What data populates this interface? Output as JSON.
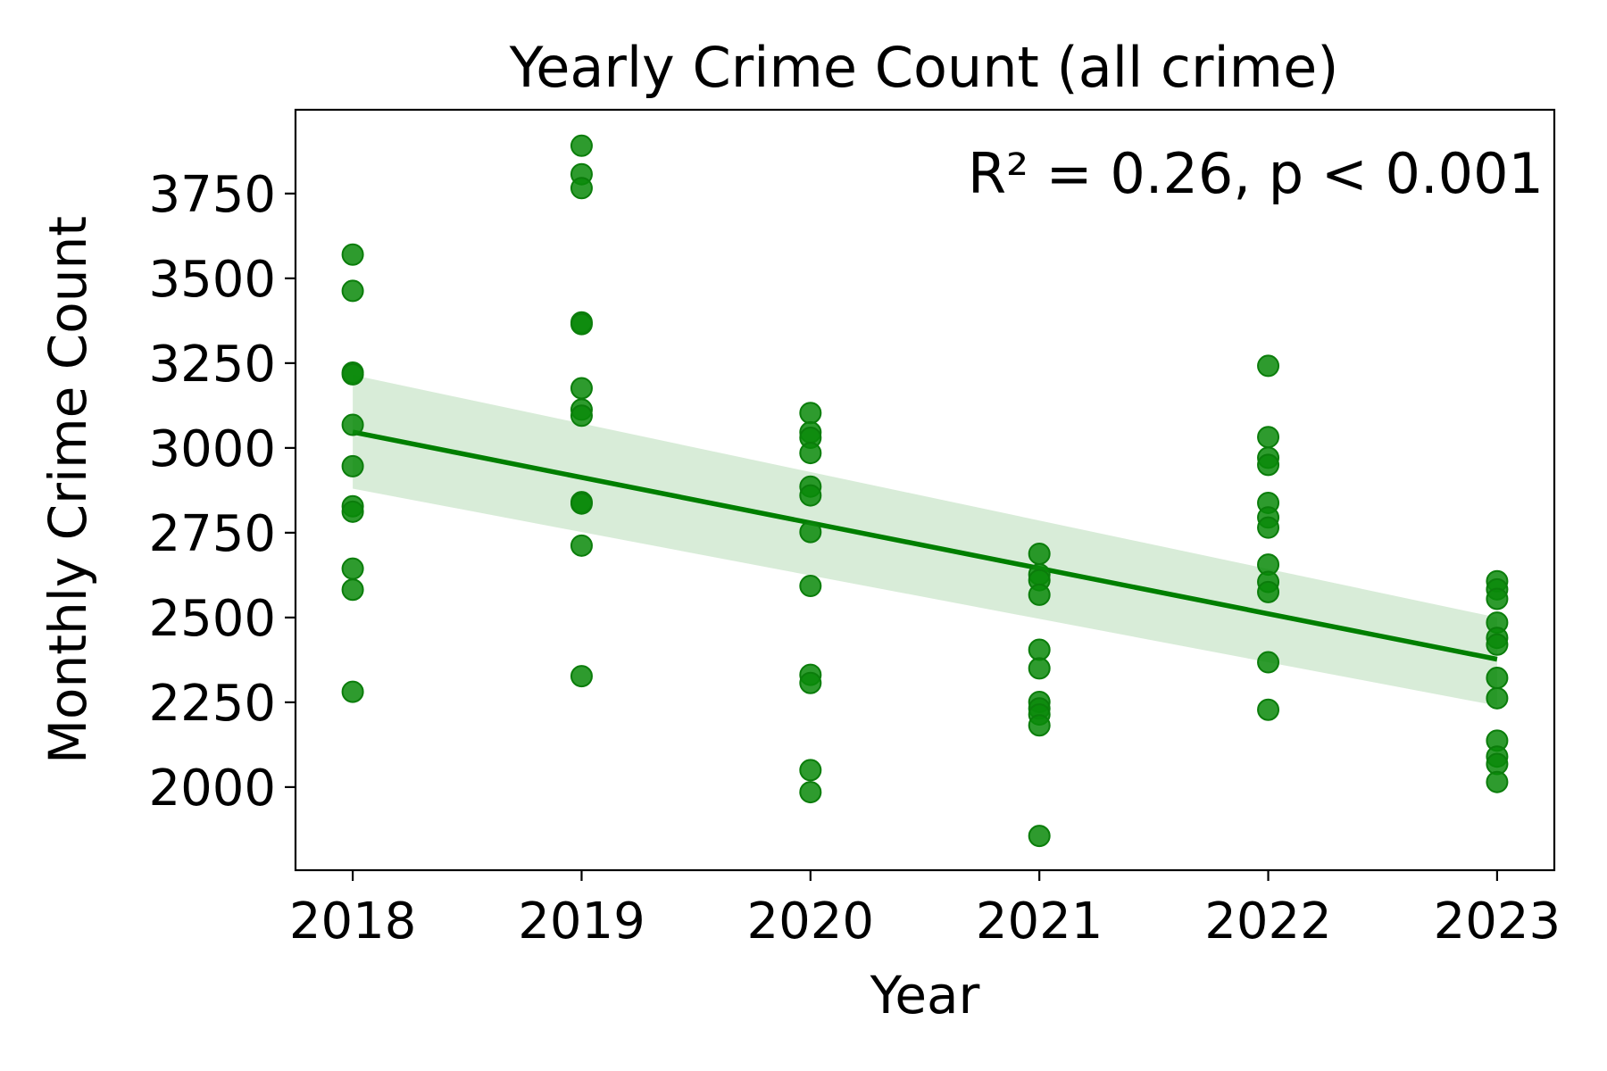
{
  "chart_data": {
    "type": "scatter",
    "title": "Yearly Crime Count (all crime)",
    "xlabel": "Year",
    "ylabel": "Monthly Crime Count",
    "annotation": "R² = 0.26, p < 0.001",
    "xlim": [
      2017.75,
      2023.25
    ],
    "ylim": [
      1755,
      3997
    ],
    "x_ticks": [
      2018,
      2019,
      2020,
      2021,
      2022,
      2023
    ],
    "x_tick_labels": [
      "2018",
      "2019",
      "2020",
      "2021",
      "2022",
      "2023"
    ],
    "y_ticks": [
      2000,
      2250,
      2500,
      2750,
      3000,
      3250,
      3500,
      3750
    ],
    "y_tick_labels": [
      "2000",
      "2250",
      "2500",
      "2750",
      "3000",
      "3250",
      "3500",
      "3750"
    ],
    "grid": false,
    "colors": {
      "points": "#098a09",
      "point_edge": "#0b7d0b",
      "line": "#007f00",
      "band": "#d8ecd8"
    },
    "series": [
      {
        "points": [
          {
            "x": 2018,
            "y": 3570
          },
          {
            "x": 2018,
            "y": 3463
          },
          {
            "x": 2018,
            "y": 3222
          },
          {
            "x": 2018,
            "y": 3217
          },
          {
            "x": 2018,
            "y": 3068
          },
          {
            "x": 2018,
            "y": 2946
          },
          {
            "x": 2018,
            "y": 2828
          },
          {
            "x": 2018,
            "y": 2812
          },
          {
            "x": 2018,
            "y": 2644
          },
          {
            "x": 2018,
            "y": 2582
          },
          {
            "x": 2018,
            "y": 2281
          },
          {
            "x": 2019,
            "y": 3891
          },
          {
            "x": 2019,
            "y": 3807
          },
          {
            "x": 2019,
            "y": 3766
          },
          {
            "x": 2019,
            "y": 3370
          },
          {
            "x": 2019,
            "y": 3365
          },
          {
            "x": 2019,
            "y": 3176
          },
          {
            "x": 2019,
            "y": 3113
          },
          {
            "x": 2019,
            "y": 3095
          },
          {
            "x": 2019,
            "y": 2840
          },
          {
            "x": 2019,
            "y": 2836
          },
          {
            "x": 2019,
            "y": 2712
          },
          {
            "x": 2019,
            "y": 2327
          },
          {
            "x": 2020,
            "y": 3103
          },
          {
            "x": 2020,
            "y": 3046
          },
          {
            "x": 2020,
            "y": 3030
          },
          {
            "x": 2020,
            "y": 2985
          },
          {
            "x": 2020,
            "y": 2886
          },
          {
            "x": 2020,
            "y": 2860
          },
          {
            "x": 2020,
            "y": 2752
          },
          {
            "x": 2020,
            "y": 2593
          },
          {
            "x": 2020,
            "y": 2331
          },
          {
            "x": 2020,
            "y": 2307
          },
          {
            "x": 2020,
            "y": 2050
          },
          {
            "x": 2020,
            "y": 1985
          },
          {
            "x": 2021,
            "y": 2688
          },
          {
            "x": 2021,
            "y": 2627
          },
          {
            "x": 2021,
            "y": 2610
          },
          {
            "x": 2021,
            "y": 2567
          },
          {
            "x": 2021,
            "y": 2405
          },
          {
            "x": 2021,
            "y": 2350
          },
          {
            "x": 2021,
            "y": 2251
          },
          {
            "x": 2021,
            "y": 2232
          },
          {
            "x": 2021,
            "y": 2214
          },
          {
            "x": 2021,
            "y": 2182
          },
          {
            "x": 2021,
            "y": 1856
          },
          {
            "x": 2022,
            "y": 3242
          },
          {
            "x": 2022,
            "y": 3032
          },
          {
            "x": 2022,
            "y": 2971
          },
          {
            "x": 2022,
            "y": 2950
          },
          {
            "x": 2022,
            "y": 2838
          },
          {
            "x": 2022,
            "y": 2795
          },
          {
            "x": 2022,
            "y": 2765
          },
          {
            "x": 2022,
            "y": 2656
          },
          {
            "x": 2022,
            "y": 2605
          },
          {
            "x": 2022,
            "y": 2575
          },
          {
            "x": 2022,
            "y": 2368
          },
          {
            "x": 2022,
            "y": 2228
          },
          {
            "x": 2023,
            "y": 2607
          },
          {
            "x": 2023,
            "y": 2583
          },
          {
            "x": 2023,
            "y": 2555
          },
          {
            "x": 2023,
            "y": 2485
          },
          {
            "x": 2023,
            "y": 2440
          },
          {
            "x": 2023,
            "y": 2420
          },
          {
            "x": 2023,
            "y": 2322
          },
          {
            "x": 2023,
            "y": 2262
          },
          {
            "x": 2023,
            "y": 2137
          },
          {
            "x": 2023,
            "y": 2090
          },
          {
            "x": 2023,
            "y": 2068
          },
          {
            "x": 2023,
            "y": 2015
          }
        ]
      }
    ],
    "regression": {
      "x": [
        2018,
        2023
      ],
      "y": [
        3047,
        2377
      ],
      "ci_upper": [
        3215,
        2500
      ],
      "ci_lower": [
        2880,
        2240
      ]
    }
  }
}
